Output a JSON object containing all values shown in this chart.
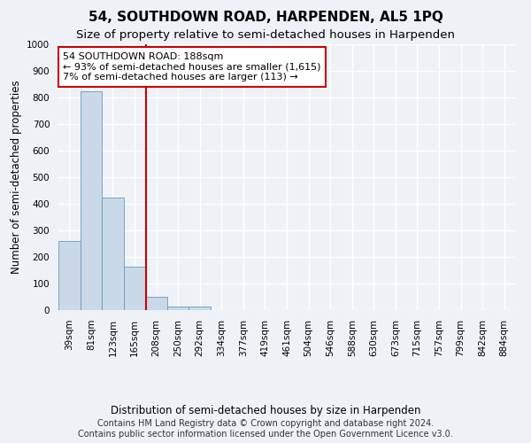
{
  "title": "54, SOUTHDOWN ROAD, HARPENDEN, AL5 1PQ",
  "subtitle": "Size of property relative to semi-detached houses in Harpenden",
  "xlabel": "Distribution of semi-detached houses by size in Harpenden",
  "ylabel": "Number of semi-detached properties",
  "bin_labels": [
    "39sqm",
    "81sqm",
    "123sqm",
    "165sqm",
    "208sqm",
    "250sqm",
    "292sqm",
    "334sqm",
    "377sqm",
    "419sqm",
    "461sqm",
    "504sqm",
    "546sqm",
    "588sqm",
    "630sqm",
    "673sqm",
    "715sqm",
    "757sqm",
    "799sqm",
    "842sqm",
    "884sqm"
  ],
  "bar_values": [
    260,
    825,
    425,
    165,
    50,
    12,
    12,
    0,
    0,
    0,
    0,
    0,
    0,
    0,
    0,
    0,
    0,
    0,
    0,
    0,
    0
  ],
  "bar_color": "#c9d9e8",
  "bar_edge_color": "#6699bb",
  "vline_color": "#cc0000",
  "annotation_text": "54 SOUTHDOWN ROAD: 188sqm\n← 93% of semi-detached houses are smaller (1,615)\n7% of semi-detached houses are larger (113) →",
  "annotation_box_color": "white",
  "annotation_box_edge_color": "#cc0000",
  "ylim": [
    0,
    1000
  ],
  "yticks": [
    0,
    100,
    200,
    300,
    400,
    500,
    600,
    700,
    800,
    900,
    1000
  ],
  "footer_line1": "Contains HM Land Registry data © Crown copyright and database right 2024.",
  "footer_line2": "Contains public sector information licensed under the Open Government Licence v3.0.",
  "background_color": "#eef2f6",
  "grid_color": "#ffffff",
  "title_fontsize": 11,
  "subtitle_fontsize": 9.5,
  "axis_label_fontsize": 8.5,
  "tick_fontsize": 7.5,
  "footer_fontsize": 7
}
